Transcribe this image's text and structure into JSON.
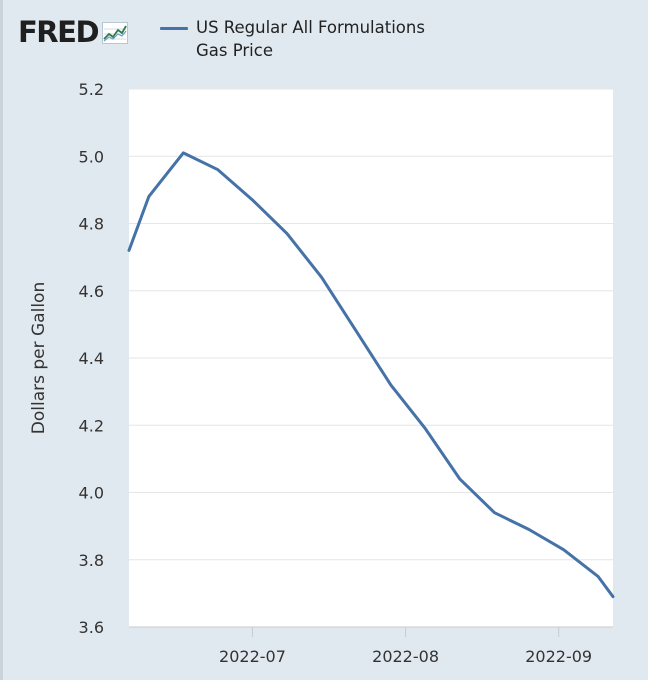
{
  "header": {
    "logo_text": "FRED",
    "logo_icon": "line-chart-icon"
  },
  "chart_data": {
    "type": "line",
    "title": "",
    "xlabel": "",
    "ylabel": "Dollars per Gallon",
    "ylim": [
      3.6,
      5.2
    ],
    "yticks": [
      "3.6",
      "3.8",
      "4.0",
      "4.2",
      "4.4",
      "4.6",
      "4.8",
      "5.0",
      "5.2"
    ],
    "ytick_values": [
      3.6,
      3.8,
      4.0,
      4.2,
      4.4,
      4.6,
      4.8,
      5.0,
      5.2
    ],
    "xlim": [
      "2022-06-06",
      "2022-09-12"
    ],
    "xticks": [
      {
        "date": "2022-07-01",
        "label": "2022-07"
      },
      {
        "date": "2022-08-01",
        "label": "2022-08"
      },
      {
        "date": "2022-09-01",
        "label": "2022-09"
      }
    ],
    "grid": true,
    "series": [
      {
        "name": "US Regular All Formulations Gas Price",
        "color": "#4572a7",
        "x": [
          "2022-06-06",
          "2022-06-10",
          "2022-06-17",
          "2022-06-24",
          "2022-07-01",
          "2022-07-08",
          "2022-07-15",
          "2022-07-22",
          "2022-07-29",
          "2022-08-05",
          "2022-08-12",
          "2022-08-19",
          "2022-08-26",
          "2022-09-02",
          "2022-09-09",
          "2022-09-12"
        ],
        "values": [
          4.72,
          4.88,
          5.01,
          4.96,
          4.87,
          4.77,
          4.64,
          4.48,
          4.32,
          4.19,
          4.04,
          3.94,
          3.89,
          3.83,
          3.75,
          3.69
        ]
      }
    ]
  }
}
